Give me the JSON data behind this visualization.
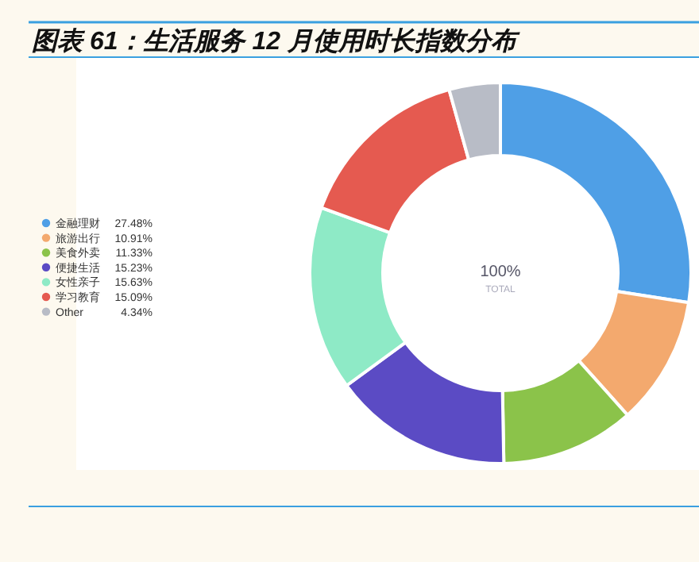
{
  "chart_data": {
    "type": "donut",
    "title": "图表 61：生活服务 12 月使用时长指数分布",
    "categories": [
      "金融理财",
      "旅游出行",
      "美食外卖",
      "便捷生活",
      "女性亲子",
      "学习教育",
      "Other"
    ],
    "values": [
      27.48,
      10.91,
      11.33,
      15.23,
      15.63,
      15.09,
      4.34
    ],
    "colors": [
      "#4f9fe6",
      "#f3a96e",
      "#8bc34a",
      "#5b4bc4",
      "#8eeac6",
      "#e55a50",
      "#b8bcc6"
    ],
    "value_labels": [
      "27.48%",
      "10.91%",
      "11.33%",
      "15.23%",
      "15.63%",
      "15.09%",
      "4.34%"
    ],
    "legend": "left",
    "annotations": [
      "100%",
      "TOTAL"
    ]
  }
}
